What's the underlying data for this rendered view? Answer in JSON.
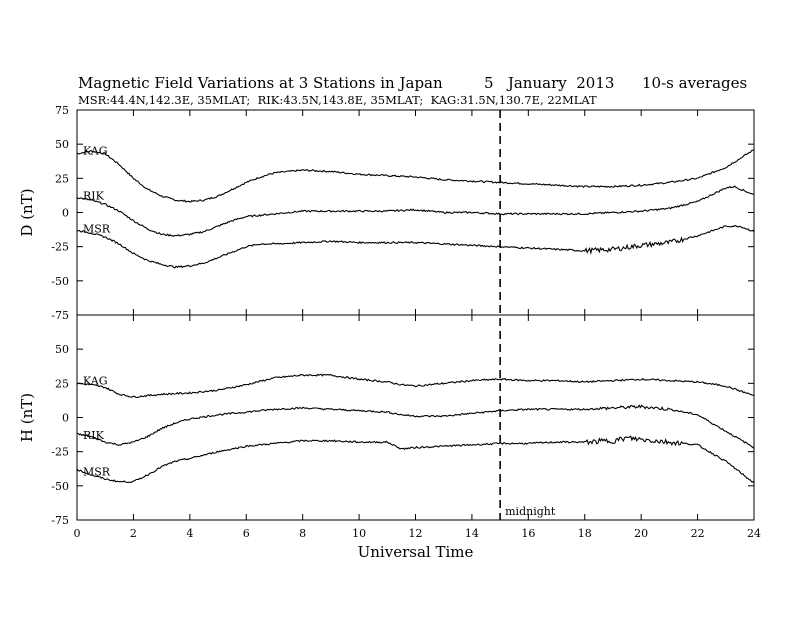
{
  "chart_data": {
    "type": "line",
    "title": "Magnetic Field Variations at 3 Stations in Japan",
    "date_text": "5   January  2013",
    "averaging_text": "10-s averages",
    "subtitle": "MSR:44.4N,142.3E, 35MLAT;  RIK:43.5N,143.8E, 35MLAT;  KAG:31.5N,130.7E, 22MLAT",
    "xlabel": "Universal Time",
    "xlim": [
      0,
      24
    ],
    "xticks": [
      0,
      2,
      4,
      6,
      8,
      10,
      12,
      14,
      16,
      18,
      20,
      22,
      24
    ],
    "grid": false,
    "annotation": {
      "text": "midnight",
      "x": 15
    },
    "panels": [
      {
        "ylabel": "D (nT)",
        "ylim": [
          -75,
          75
        ],
        "yticks": [
          75,
          50,
          25,
          0,
          -25,
          -50,
          -75
        ],
        "series": [
          {
            "name": "KAG",
            "x": [
              0,
              0.5,
              1,
              1.5,
              2,
              2.5,
              3,
              3.5,
              4,
              4.5,
              5,
              5.5,
              6,
              6.5,
              7,
              7.5,
              8,
              9,
              10,
              11,
              12,
              13,
              14,
              15,
              16,
              17,
              18,
              19,
              20,
              21,
              22,
              23,
              24
            ],
            "values": [
              43,
              45,
              43,
              35,
              25,
              17,
              12,
              9,
              8,
              9,
              12,
              17,
              22,
              26,
              29,
              30,
              31,
              30,
              28,
              27,
              26,
              24,
              23,
              22,
              21,
              20,
              19,
              19,
              20,
              22,
              25,
              33,
              46
            ]
          },
          {
            "name": "RIK",
            "x": [
              0,
              0.5,
              1,
              1.5,
              2,
              2.5,
              3,
              3.5,
              4,
              4.5,
              5,
              5.5,
              6,
              6.5,
              7,
              8,
              9,
              10,
              11,
              12,
              13,
              14,
              15,
              16,
              17,
              18,
              19,
              20,
              21,
              22,
              23,
              23.3,
              24
            ],
            "values": [
              11,
              9,
              6,
              1,
              -6,
              -12,
              -16,
              -17,
              -16,
              -14,
              -10,
              -6,
              -3,
              -2,
              -1,
              1,
              1,
              1,
              1,
              2,
              0,
              0,
              -1,
              -1,
              -1,
              -1,
              0,
              1,
              3,
              8,
              18,
              19,
              13
            ]
          },
          {
            "name": "MSR",
            "x": [
              0,
              0.5,
              1,
              1.5,
              2,
              2.5,
              3,
              3.5,
              4,
              4.5,
              5,
              5.5,
              6,
              6.5,
              7,
              8,
              9,
              10,
              11,
              12,
              13,
              14,
              15,
              16,
              17,
              18,
              19,
              20,
              21,
              22,
              23,
              23.5,
              24
            ],
            "values": [
              -13,
              -15,
              -18,
              -23,
              -30,
              -35,
              -38,
              -40,
              -39,
              -37,
              -33,
              -29,
              -25,
              -23,
              -23,
              -22,
              -21,
              -22,
              -22,
              -22,
              -23,
              -24,
              -25,
              -26,
              -27,
              -28,
              -27,
              -24,
              -22,
              -17,
              -10,
              -10,
              -14
            ]
          }
        ]
      },
      {
        "ylabel": "H (nT)",
        "ylim": [
          -75,
          75
        ],
        "yticks": [
          50,
          25,
          0,
          -25,
          -50,
          -75
        ],
        "series": [
          {
            "name": "KAG",
            "x": [
              0,
              0.5,
              1,
              1.5,
              2,
              2.5,
              3,
              4,
              5,
              6,
              7,
              8,
              9,
              10,
              11,
              11.5,
              12,
              13,
              14,
              15,
              16,
              17,
              18,
              19,
              20,
              21,
              22,
              23,
              24
            ],
            "values": [
              25,
              24,
              22,
              17,
              15,
              16,
              17,
              18,
              20,
              24,
              29,
              31,
              31,
              28,
              26,
              24,
              23,
              25,
              27,
              28,
              27,
              27,
              26,
              27,
              28,
              27,
              26,
              23,
              16
            ]
          },
          {
            "name": "RIK",
            "x": [
              0,
              0.5,
              1,
              1.5,
              2,
              2.5,
              3,
              3.5,
              4,
              5,
              6,
              7,
              8,
              9,
              10,
              11,
              11.5,
              12,
              13,
              14,
              15,
              16,
              17,
              18,
              19,
              20,
              21,
              22,
              23,
              24
            ],
            "values": [
              -12,
              -14,
              -18,
              -20,
              -18,
              -14,
              -8,
              -4,
              -1,
              2,
              4,
              6,
              7,
              6,
              5,
              4,
              2,
              1,
              1,
              3,
              5,
              6,
              6,
              6,
              7,
              8,
              6,
              2,
              -10,
              -22
            ]
          },
          {
            "name": "MSR",
            "x": [
              0,
              0.5,
              1,
              1.5,
              2,
              2.5,
              3,
              3.5,
              4,
              5,
              6,
              7,
              8,
              9,
              10,
              11,
              11.5,
              12,
              13,
              14,
              15,
              16,
              17,
              18,
              19,
              19.5,
              20,
              21,
              22,
              23,
              24
            ],
            "values": [
              -38,
              -42,
              -45,
              -47,
              -47,
              -42,
              -36,
              -32,
              -30,
              -25,
              -21,
              -19,
              -17,
              -17,
              -18,
              -18,
              -23,
              -22,
              -21,
              -20,
              -19,
              -19,
              -18,
              -18,
              -17,
              -15,
              -16,
              -18,
              -20,
              -32,
              -48
            ]
          }
        ]
      }
    ]
  }
}
